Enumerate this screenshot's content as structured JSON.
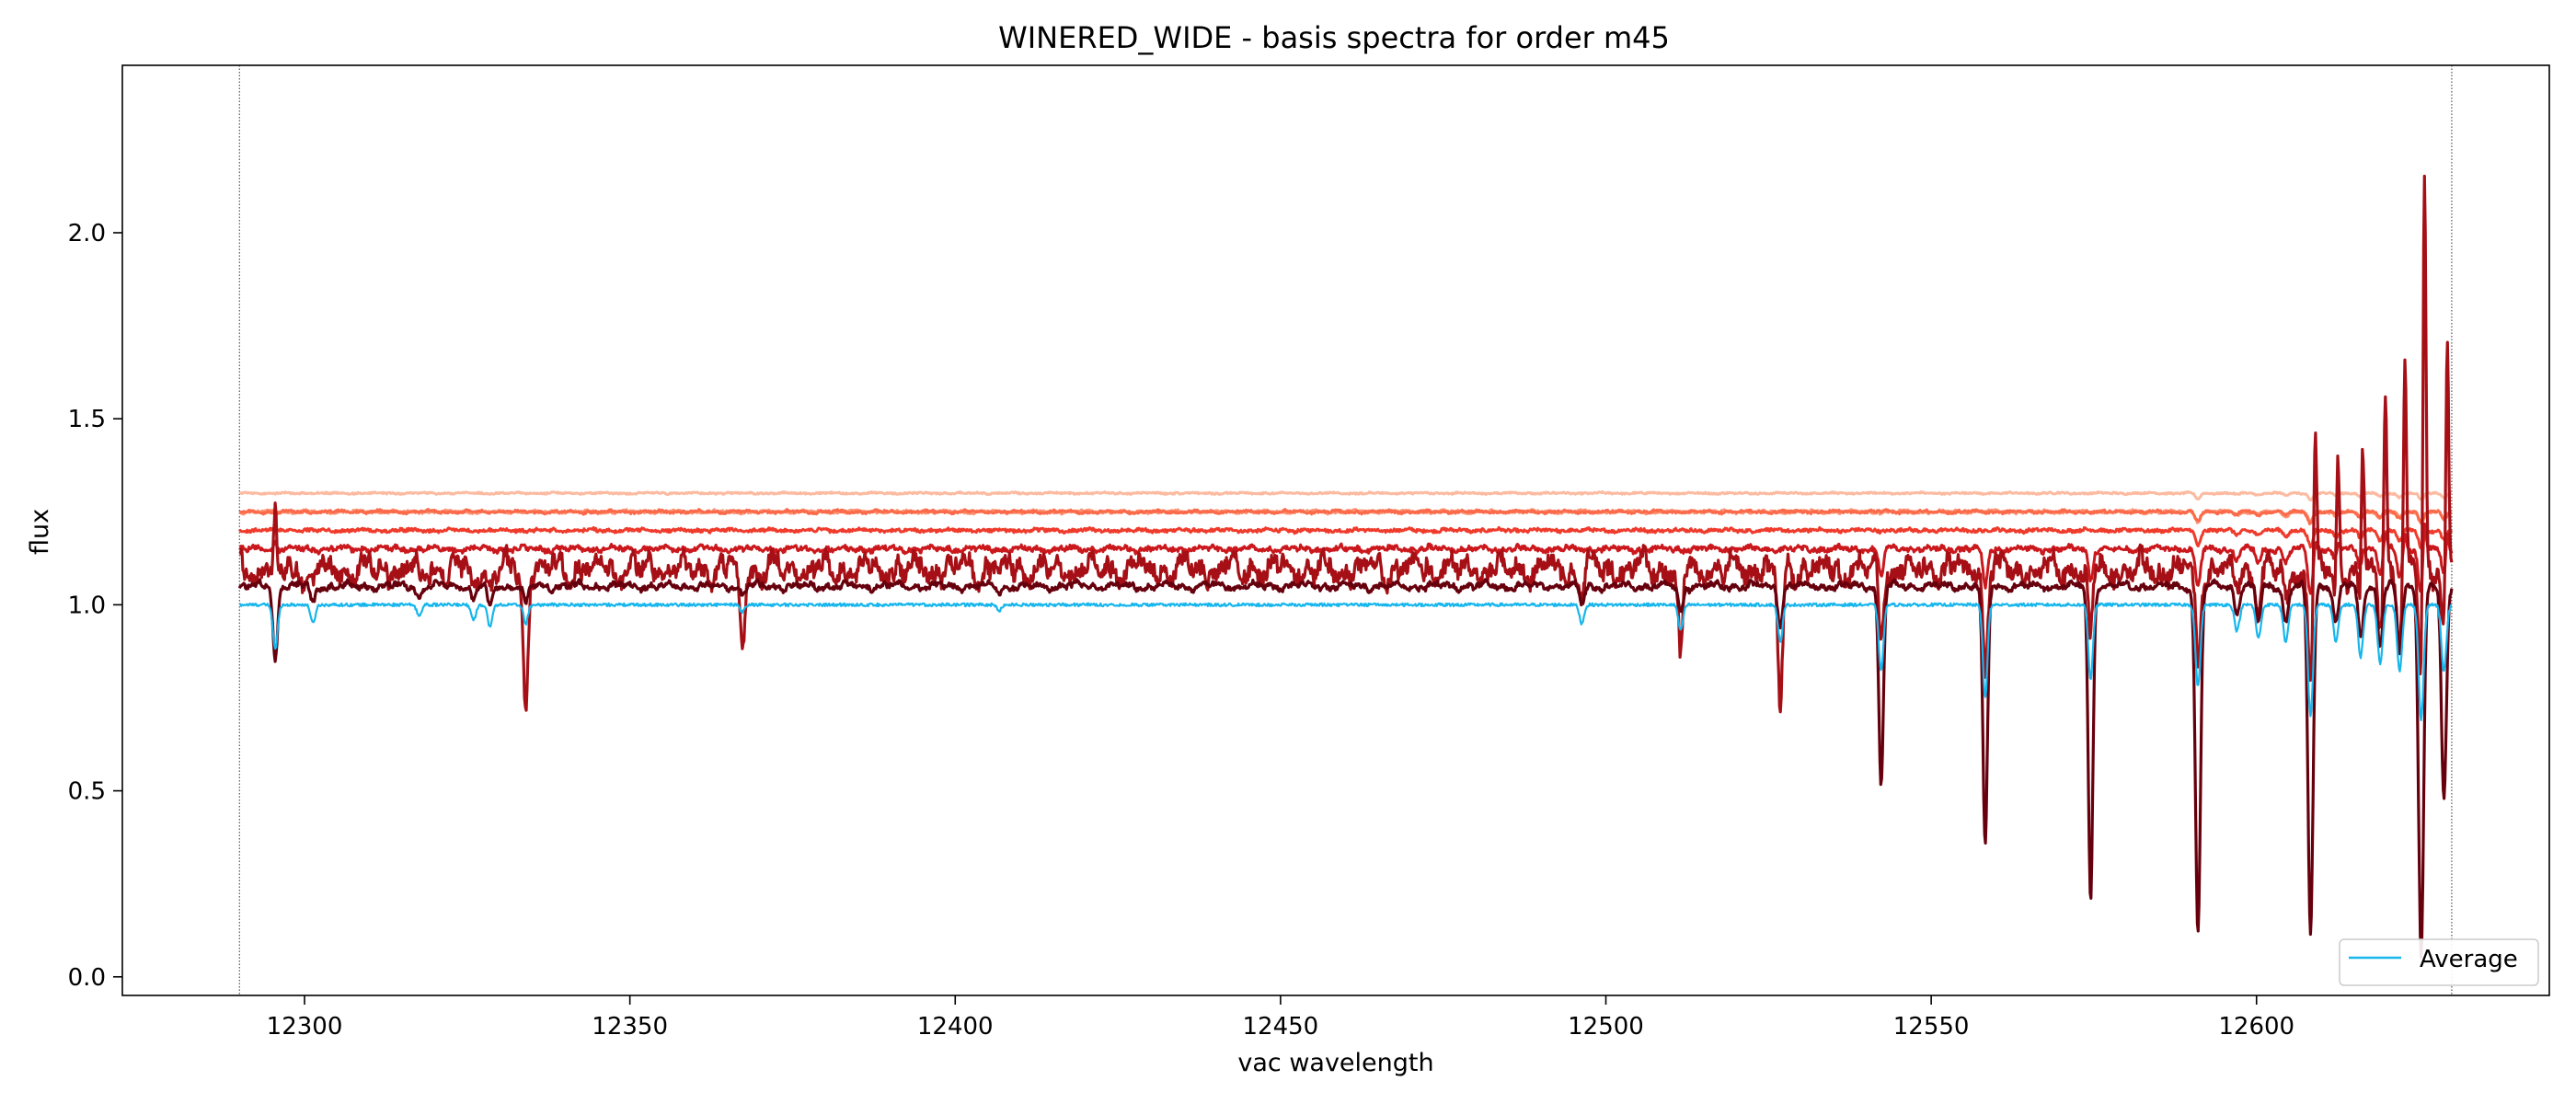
{
  "chart_data": {
    "type": "line",
    "title": "WINERED_WIDE - basis spectra for order m45",
    "xlabel": "vac wavelength",
    "ylabel": "flux",
    "xlim": [
      12272,
      12645
    ],
    "ylim": [
      -0.05,
      2.45
    ],
    "xticks": [
      12300,
      12350,
      12400,
      12450,
      12500,
      12550,
      12600
    ],
    "yticks": [
      0.0,
      0.5,
      1.0,
      1.5,
      2.0
    ],
    "ytick_labels": [
      "0.0",
      "0.5",
      "1.0",
      "1.5",
      "2.0"
    ],
    "x_range": [
      12290,
      12630
    ],
    "vlines": [
      12290,
      12630
    ],
    "legend": {
      "position": "lower-right",
      "entries": [
        {
          "name": "Average",
          "color": "#17b6ec"
        }
      ]
    },
    "absorption_lines": [
      {
        "x": 12295.5,
        "depth": 0.12
      },
      {
        "x": 12301.3,
        "depth": 0.05
      },
      {
        "x": 12317.6,
        "depth": 0.03
      },
      {
        "x": 12326.0,
        "depth": 0.04
      },
      {
        "x": 12328.5,
        "depth": 0.06
      },
      {
        "x": 12334.0,
        "depth": 0.05
      },
      {
        "x": 12367.3,
        "depth": 0.02
      },
      {
        "x": 12406.8,
        "depth": 0.015
      },
      {
        "x": 12496.3,
        "depth": 0.05
      },
      {
        "x": 12511.5,
        "depth": 0.07
      },
      {
        "x": 12526.8,
        "depth": 0.1
      },
      {
        "x": 12542.3,
        "depth": 0.18
      },
      {
        "x": 12558.3,
        "depth": 0.25
      },
      {
        "x": 12574.5,
        "depth": 0.2
      },
      {
        "x": 12591.0,
        "depth": 0.26
      },
      {
        "x": 12597.0,
        "depth": 0.07
      },
      {
        "x": 12600.3,
        "depth": 0.09
      },
      {
        "x": 12604.5,
        "depth": 0.1
      },
      {
        "x": 12608.3,
        "depth": 0.3
      },
      {
        "x": 12612.2,
        "depth": 0.1
      },
      {
        "x": 12616.0,
        "depth": 0.14
      },
      {
        "x": 12619.0,
        "depth": 0.16
      },
      {
        "x": 12622.0,
        "depth": 0.18
      },
      {
        "x": 12625.3,
        "depth": 0.31
      },
      {
        "x": 12628.8,
        "depth": 0.18
      }
    ],
    "emission_peaks": [
      {
        "x": 12295.5,
        "height": 1.35
      },
      {
        "x": 12609.0,
        "height": 1.49
      },
      {
        "x": 12612.5,
        "height": 1.48
      },
      {
        "x": 12616.3,
        "height": 1.52
      },
      {
        "x": 12619.8,
        "height": 1.62
      },
      {
        "x": 12622.8,
        "height": 1.65
      },
      {
        "x": 12625.8,
        "height": 2.29
      },
      {
        "x": 12629.3,
        "height": 1.8
      }
    ],
    "series": [
      {
        "name": "Average",
        "color": "#17b6ec",
        "width": 2.2,
        "baseline": 1.0,
        "noise": 0.004,
        "dip_scale": 1.0,
        "wiggle": 0.0,
        "dips": "all",
        "min_values": [
          {
            "x": 12591.0,
            "y": 0.78
          },
          {
            "x": 12608.3,
            "y": 0.7
          },
          {
            "x": 12625.3,
            "y": 0.69
          }
        ]
      },
      {
        "name": "",
        "color": "#67000d",
        "width": 3.2,
        "baseline": 1.05,
        "noise": 0.006,
        "dip_scale": 1.0,
        "wiggle": 0.006,
        "dips": "all",
        "min_values": [
          {
            "x": 12295.5,
            "y": 0.85
          },
          {
            "x": 12542.3,
            "y": 0.52
          },
          {
            "x": 12558.3,
            "y": 0.35
          },
          {
            "x": 12574.5,
            "y": 0.21
          },
          {
            "x": 12591.0,
            "y": 0.11
          },
          {
            "x": 12608.3,
            "y": 0.11
          },
          {
            "x": 12625.3,
            "y": 0.06
          },
          {
            "x": 12628.8,
            "y": 0.47
          }
        ]
      },
      {
        "name": "",
        "color": "#a50f15",
        "width": 3.2,
        "baseline": 1.1,
        "noise": 0.022,
        "dip_scale": 1.0,
        "wiggle": 0.02,
        "dips": "all",
        "min_values": [
          {
            "x": 12334.0,
            "y": 0.72
          },
          {
            "x": 12367.3,
            "y": 0.88
          },
          {
            "x": 12526.8,
            "y": 0.7
          },
          {
            "x": 12511.5,
            "y": 0.85
          }
        ]
      },
      {
        "name": "",
        "color": "#cb181d",
        "width": 3.0,
        "baseline": 1.15,
        "noise": 0.006,
        "dip_scale": 0.4,
        "wiggle": 0.004,
        "dips": "right"
      },
      {
        "name": "",
        "color": "#ef3b2c",
        "width": 3.0,
        "baseline": 1.2,
        "noise": 0.004,
        "dip_scale": 0.15,
        "wiggle": 0.002,
        "dips": "few"
      },
      {
        "name": "",
        "color": "#fb6a4a",
        "width": 3.0,
        "baseline": 1.25,
        "noise": 0.003,
        "dip_scale": 0.1,
        "wiggle": 0.002,
        "dips": "few"
      },
      {
        "name": "",
        "color": "#fc9272",
        "width": 3.0,
        "baseline": 1.25,
        "noise": 0.003,
        "dip_scale": 0.1,
        "wiggle": 0.002,
        "dips": "few"
      },
      {
        "name": "",
        "color": "#fcbba1",
        "width": 3.0,
        "baseline": 1.3,
        "noise": 0.002,
        "dip_scale": 0.06,
        "wiggle": 0.001,
        "dips": "few"
      }
    ]
  }
}
